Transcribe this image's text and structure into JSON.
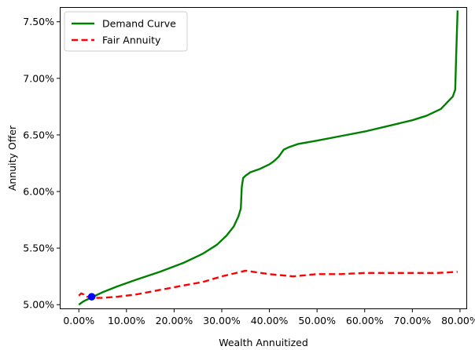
{
  "chart_data": {
    "type": "line",
    "title": "",
    "xlabel": "Wealth Annuitized",
    "ylabel": "Annuity Offer",
    "xlim": [
      -0.04,
      0.815
    ],
    "ylim": [
      0.0496,
      0.0763
    ],
    "x_ticks": [
      0.0,
      0.1,
      0.2,
      0.3,
      0.4,
      0.5,
      0.6,
      0.7,
      0.8
    ],
    "x_tick_labels": [
      "0.00%",
      "10.00%",
      "20.00%",
      "30.00%",
      "40.00%",
      "50.00%",
      "60.00%",
      "70.00%",
      "80.00%"
    ],
    "y_ticks": [
      0.05,
      0.055,
      0.06,
      0.065,
      0.07,
      0.075
    ],
    "y_tick_labels": [
      "5.00%",
      "5.50%",
      "6.00%",
      "6.50%",
      "7.00%",
      "7.50%"
    ],
    "grid": false,
    "legend_position": "top-left",
    "series": [
      {
        "name": "Demand Curve",
        "color": "#008000",
        "style": "solid",
        "x": [
          0.0,
          0.01,
          0.02,
          0.03,
          0.05,
          0.08,
          0.12,
          0.17,
          0.22,
          0.26,
          0.29,
          0.31,
          0.325,
          0.335,
          0.34,
          0.342,
          0.345,
          0.35,
          0.36,
          0.38,
          0.4,
          0.41,
          0.42,
          0.43,
          0.44,
          0.46,
          0.5,
          0.55,
          0.6,
          0.65,
          0.7,
          0.73,
          0.76,
          0.785,
          0.79,
          0.792,
          0.795
        ],
        "y": [
          0.05,
          0.0503,
          0.0505,
          0.0507,
          0.0511,
          0.0516,
          0.0522,
          0.0529,
          0.0537,
          0.0545,
          0.0553,
          0.0561,
          0.0569,
          0.0578,
          0.0585,
          0.0604,
          0.0612,
          0.0614,
          0.0617,
          0.062,
          0.0624,
          0.0627,
          0.0631,
          0.0637,
          0.0639,
          0.0642,
          0.0645,
          0.0649,
          0.0653,
          0.0658,
          0.0663,
          0.0667,
          0.0673,
          0.0684,
          0.069,
          0.072,
          0.076
        ]
      },
      {
        "name": "Fair Annuity",
        "color": "#ff0000",
        "style": "dashed",
        "x": [
          0.0,
          0.005,
          0.01,
          0.015,
          0.02,
          0.03,
          0.05,
          0.08,
          0.12,
          0.17,
          0.22,
          0.26,
          0.3,
          0.35,
          0.4,
          0.45,
          0.5,
          0.55,
          0.6,
          0.65,
          0.7,
          0.75,
          0.795
        ],
        "y": [
          0.0508,
          0.051,
          0.0509,
          0.0507,
          0.0507,
          0.0506,
          0.0506,
          0.0507,
          0.0509,
          0.0513,
          0.0517,
          0.052,
          0.0525,
          0.053,
          0.0527,
          0.0525,
          0.0527,
          0.0527,
          0.0528,
          0.0528,
          0.0528,
          0.0528,
          0.0529
        ]
      }
    ],
    "points": [
      {
        "x": 0.027,
        "y": 0.0507,
        "color": "#0000ff"
      }
    ]
  }
}
